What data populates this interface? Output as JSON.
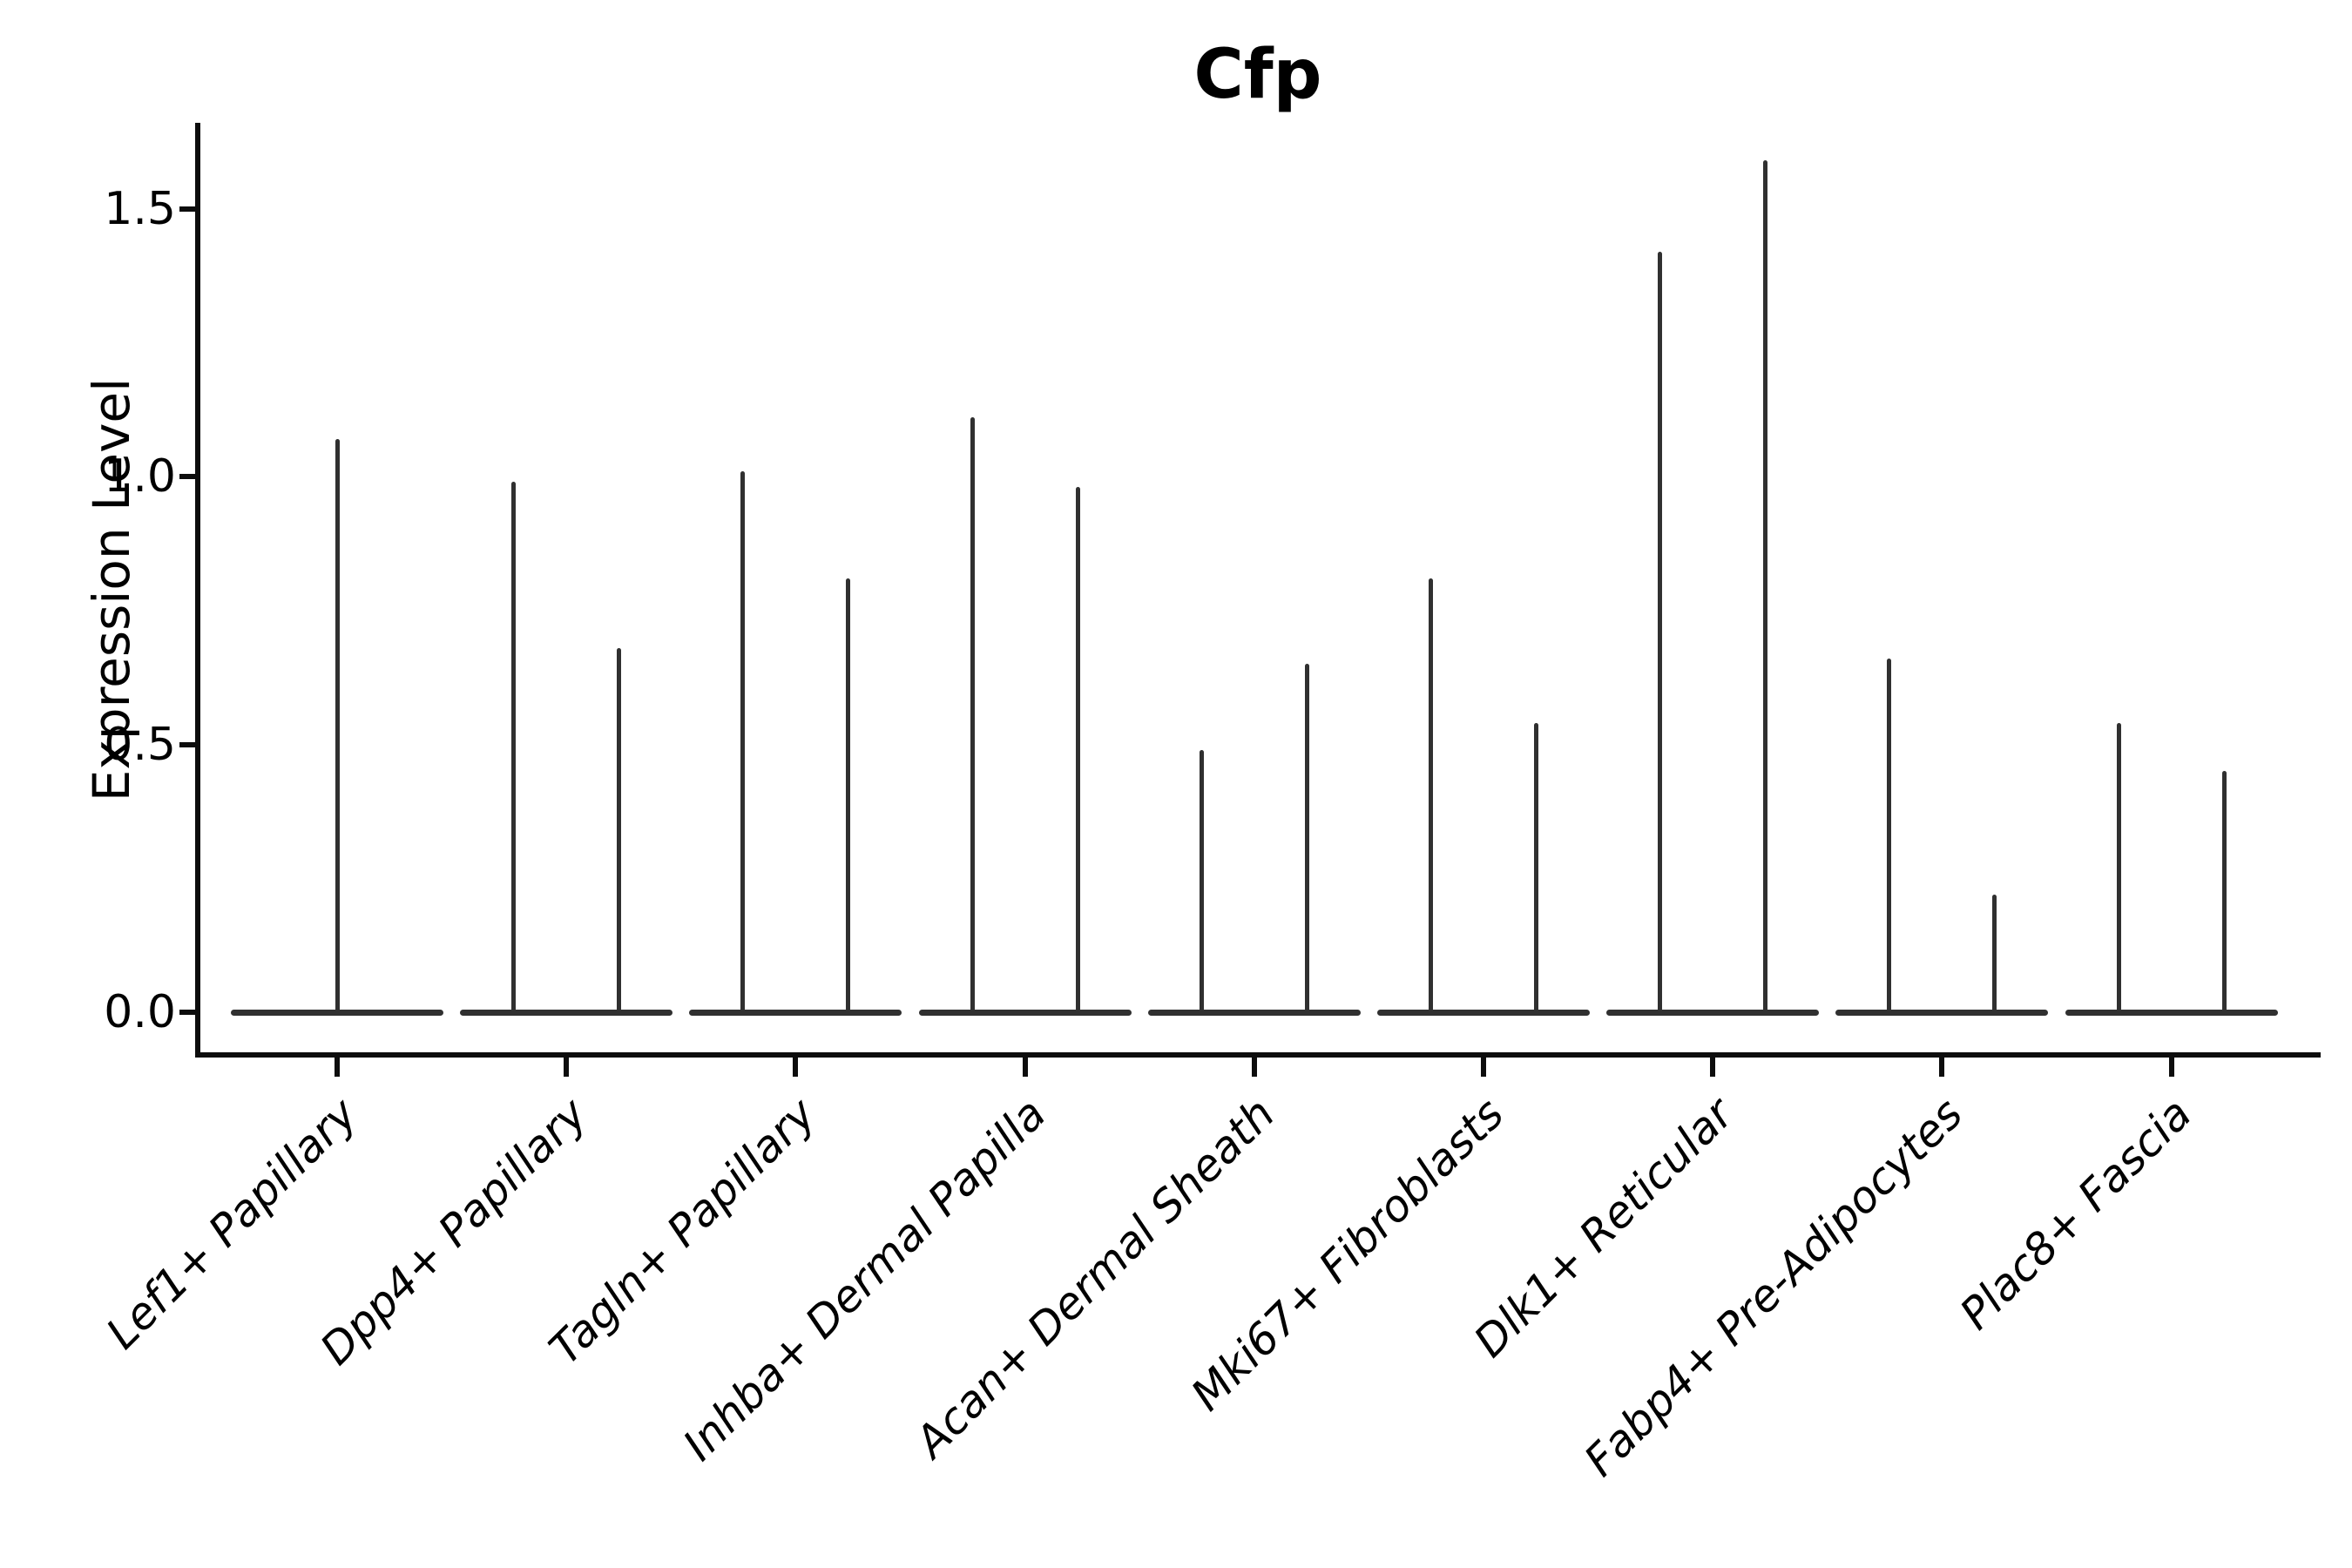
{
  "figure": {
    "background": "#ffffff"
  },
  "chart_data": {
    "type": "violin",
    "title": "Cfp",
    "xlabel": "",
    "ylabel": "Expression Level",
    "yticks": [
      {
        "label": "0.0",
        "value": 0.0
      },
      {
        "label": "0.5",
        "value": 0.5
      },
      {
        "label": "1.0",
        "value": 1.0
      },
      {
        "label": "1.5",
        "value": 1.5
      }
    ],
    "ylim": [
      -0.08,
      1.66
    ],
    "grid": false,
    "legend": null,
    "violin_shape": "flat-base-at-zero-with-thin-spike-to-max",
    "violin_baseline_value": 0.0,
    "categories": [
      {
        "label": "Lef1+ Papillary",
        "violin_max": [
          1.07
        ]
      },
      {
        "label": "Dpp4+ Papillary",
        "violin_max": [
          0.99,
          0.68
        ]
      },
      {
        "label": "Tagln+ Papillary",
        "violin_max": [
          1.01,
          0.81
        ]
      },
      {
        "label": "Inhba+ Dermal Papilla",
        "violin_max": [
          1.11,
          0.98
        ]
      },
      {
        "label": "Acan+ Dermal Sheath",
        "violin_max": [
          0.49,
          0.65
        ]
      },
      {
        "label": "Mki67+ Fibroblasts",
        "violin_max": [
          0.81,
          0.54
        ]
      },
      {
        "label": "Dlk1+ Reticular",
        "violin_max": [
          1.42,
          1.59
        ]
      },
      {
        "label": "Fabp4+ Pre-Adipocytes",
        "violin_max": [
          0.66,
          0.22
        ]
      },
      {
        "label": "Plac8+ Fascia",
        "violin_max": [
          0.54,
          0.45
        ]
      }
    ],
    "style": {
      "violin_color": "#303030",
      "axis_color": "#0d0d0d",
      "text_color": "#000000",
      "background": "#ffffff"
    }
  }
}
